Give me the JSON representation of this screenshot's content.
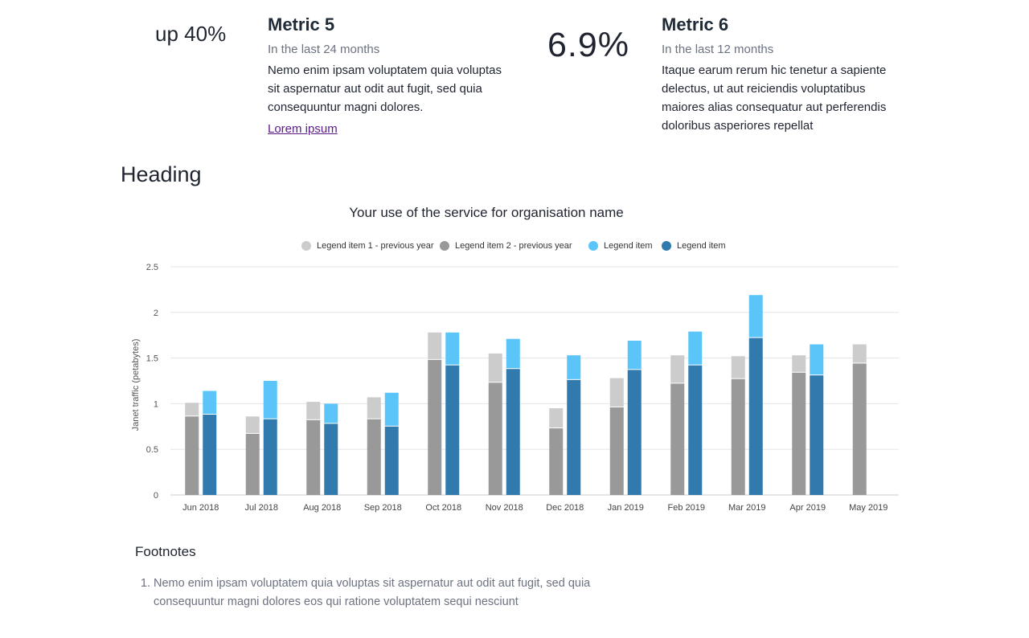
{
  "metric5": {
    "value": "up 40%",
    "title": "Metric 5",
    "period": "In the last 24 months",
    "description": "Nemo enim ipsam voluptatem quia voluptas sit aspernatur aut odit aut fugit, sed quia consequuntur magni dolores.",
    "link": "Lorem ipsum"
  },
  "metric6": {
    "value": "6.9%",
    "title": "Metric 6",
    "period": "In the last 12 months",
    "description": "Itaque earum rerum hic tenetur a sapiente delectus, ut aut reiciendis voluptatibus maiores alias consequatur aut perferendis doloribus asperiores repellat"
  },
  "section": {
    "heading": "Heading"
  },
  "chart": {
    "title": "Your use of the service for organisation name",
    "legend": [
      {
        "label": "Legend item 1 - previous year",
        "color": "#cccccc"
      },
      {
        "label": "Legend item 2 - previous year",
        "color": "#999999"
      },
      {
        "label": "Legend item",
        "color": "#5bc5f9"
      },
      {
        "label": "Legend item",
        "color": "#307aad"
      }
    ]
  },
  "chart_data": {
    "type": "bar",
    "stacked": true,
    "grouped": true,
    "title": "Your use of the service for organisation name",
    "ylabel": "Janet traffic (petabytes)",
    "xlabel": "",
    "ylim": [
      0,
      2.5
    ],
    "yticks": [
      "0",
      "0.5",
      "1",
      "1.5",
      "2",
      "2.5"
    ],
    "grid": true,
    "legend_position": "top-center",
    "categories": [
      "Jun 2018",
      "Jul 2018",
      "Aug 2018",
      "Sep 2018",
      "Oct 2018",
      "Nov 2018",
      "Dec 2018",
      "Jan 2019",
      "Feb 2019",
      "Mar 2019",
      "Apr 2019",
      "May 2019"
    ],
    "series": [
      {
        "name": "Legend item 2 - previous year",
        "stack": "previous",
        "color": "#999999",
        "values": [
          0.86,
          0.67,
          0.82,
          0.83,
          1.48,
          1.23,
          0.73,
          0.96,
          1.22,
          1.27,
          1.34,
          1.44
        ]
      },
      {
        "name": "Legend item 1 - previous year",
        "stack": "previous",
        "color": "#cccccc",
        "values": [
          0.15,
          0.19,
          0.2,
          0.24,
          0.3,
          0.32,
          0.22,
          0.32,
          0.31,
          0.25,
          0.19,
          0.21
        ]
      },
      {
        "name": "Legend item",
        "stack": "current",
        "color": "#307aad",
        "values": [
          0.88,
          0.83,
          0.78,
          0.75,
          1.42,
          1.38,
          1.26,
          1.37,
          1.42,
          1.72,
          1.31,
          null
        ]
      },
      {
        "name": "Legend item",
        "stack": "current",
        "color": "#5bc5f9",
        "values": [
          0.26,
          0.42,
          0.22,
          0.37,
          0.36,
          0.33,
          0.27,
          0.32,
          0.37,
          0.47,
          0.34,
          null
        ]
      }
    ]
  },
  "footnotes": {
    "title": "Footnotes",
    "items": [
      "Nemo enim ipsam voluptatem quia voluptas sit aspernatur aut odit aut fugit, sed quia consequuntur magni dolores eos qui ratione voluptatem sequi nesciunt"
    ]
  }
}
